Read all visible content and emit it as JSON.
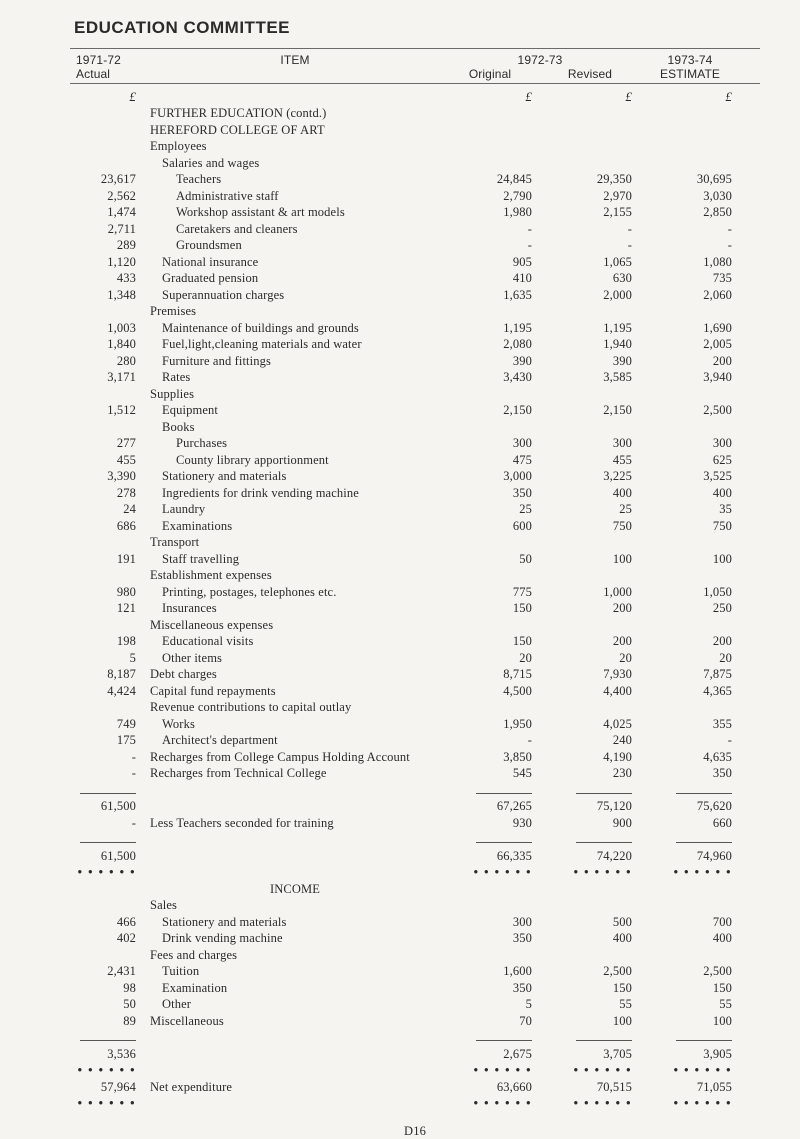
{
  "title": "EDUCATION COMMITTEE",
  "page_num": "D16",
  "header": {
    "col1_a": "1971-72",
    "col1_b": "Actual",
    "item": "ITEM",
    "col_7273": "1972-73",
    "original": "Original",
    "revised": "Revised",
    "col_7374": "1973-74",
    "estimate": "ESTIMATE"
  },
  "pound": "£",
  "sections": {
    "further": "FURTHER EDUCATION (contd.)",
    "hereford": "HEREFORD COLLEGE OF ART",
    "employees": "Employees",
    "salaries": "Salaries and wages",
    "premises": "Premises",
    "supplies": "Supplies",
    "books": "Books",
    "transport": "Transport",
    "estab": "Establishment expenses",
    "misc": "Miscellaneous expenses",
    "revenue": "Revenue contributions to capital outlay",
    "income": "INCOME",
    "sales": "Sales",
    "fees": "Fees and charges"
  },
  "rows": {
    "teachers": {
      "a": "23,617",
      "l": "Teachers",
      "o": "24,845",
      "r": "29,350",
      "e": "30,695"
    },
    "admin": {
      "a": "2,562",
      "l": "Administrative staff",
      "o": "2,790",
      "r": "2,970",
      "e": "3,030"
    },
    "workshop": {
      "a": "1,474",
      "l": "Workshop assistant & art models",
      "o": "1,980",
      "r": "2,155",
      "e": "2,850"
    },
    "caretakers": {
      "a": "2,711",
      "l": "Caretakers and cleaners",
      "o": "-",
      "r": "-",
      "e": "-"
    },
    "groundsmen": {
      "a": "289",
      "l": "Groundsmen",
      "o": "-",
      "r": "-",
      "e": "-"
    },
    "natins": {
      "a": "1,120",
      "l": "National insurance",
      "o": "905",
      "r": "1,065",
      "e": "1,080"
    },
    "gradpen": {
      "a": "433",
      "l": "Graduated pension",
      "o": "410",
      "r": "630",
      "e": "735"
    },
    "superann": {
      "a": "1,348",
      "l": "Superannuation charges",
      "o": "1,635",
      "r": "2,000",
      "e": "2,060"
    },
    "maint": {
      "a": "1,003",
      "l": "Maintenance of buildings and grounds",
      "o": "1,195",
      "r": "1,195",
      "e": "1,690"
    },
    "fuel": {
      "a": "1,840",
      "l": "Fuel,light,cleaning materials and water",
      "o": "2,080",
      "r": "1,940",
      "e": "2,005"
    },
    "furniture": {
      "a": "280",
      "l": "Furniture and fittings",
      "o": "390",
      "r": "390",
      "e": "200"
    },
    "rates": {
      "a": "3,171",
      "l": "Rates",
      "o": "3,430",
      "r": "3,585",
      "e": "3,940"
    },
    "equipment": {
      "a": "1,512",
      "l": "Equipment",
      "o": "2,150",
      "r": "2,150",
      "e": "2,500"
    },
    "purchases": {
      "a": "277",
      "l": "Purchases",
      "o": "300",
      "r": "300",
      "e": "300"
    },
    "county": {
      "a": "455",
      "l": "County library apportionment",
      "o": "475",
      "r": "455",
      "e": "625"
    },
    "stationery": {
      "a": "3,390",
      "l": "Stationery and materials",
      "o": "3,000",
      "r": "3,225",
      "e": "3,525"
    },
    "ingredients": {
      "a": "278",
      "l": "Ingredients for drink vending machine",
      "o": "350",
      "r": "400",
      "e": "400"
    },
    "laundry": {
      "a": "24",
      "l": "Laundry",
      "o": "25",
      "r": "25",
      "e": "35"
    },
    "exams": {
      "a": "686",
      "l": "Examinations",
      "o": "600",
      "r": "750",
      "e": "750"
    },
    "staff": {
      "a": "191",
      "l": "Staff travelling",
      "o": "50",
      "r": "100",
      "e": "100"
    },
    "printing": {
      "a": "980",
      "l": "Printing, postages, telephones etc.",
      "o": "775",
      "r": "1,000",
      "e": "1,050"
    },
    "insurances": {
      "a": "121",
      "l": "Insurances",
      "o": "150",
      "r": "200",
      "e": "250"
    },
    "eduvisits": {
      "a": "198",
      "l": "Educational visits",
      "o": "150",
      "r": "200",
      "e": "200"
    },
    "otheritems": {
      "a": "5",
      "l": "Other items",
      "o": "20",
      "r": "20",
      "e": "20"
    },
    "debt": {
      "a": "8,187",
      "l": "Debt charges",
      "o": "8,715",
      "r": "7,930",
      "e": "7,875"
    },
    "capital": {
      "a": "4,424",
      "l": "Capital fund repayments",
      "o": "4,500",
      "r": "4,400",
      "e": "4,365"
    },
    "works": {
      "a": "749",
      "l": "Works",
      "o": "1,950",
      "r": "4,025",
      "e": "355"
    },
    "architect": {
      "a": "175",
      "l": "Architect's department",
      "o": "-",
      "r": "240",
      "e": "-"
    },
    "recharge1": {
      "a": "-",
      "l": "Recharges from College Campus Holding Account",
      "o": "3,850",
      "r": "4,190",
      "e": "4,635"
    },
    "recharge2": {
      "a": "-",
      "l": "Recharges from Technical College",
      "o": "545",
      "r": "230",
      "e": "350"
    },
    "subtotal1": {
      "a": "61,500",
      "o": "67,265",
      "r": "75,120",
      "e": "75,620"
    },
    "lessteach": {
      "a": "-",
      "l": "Less Teachers seconded for training",
      "o": "930",
      "r": "900",
      "e": "660"
    },
    "subtotal2": {
      "a": "61,500",
      "o": "66,335",
      "r": "74,220",
      "e": "74,960"
    },
    "stationery2": {
      "a": "466",
      "l": "Stationery and materials",
      "o": "300",
      "r": "500",
      "e": "700"
    },
    "drink": {
      "a": "402",
      "l": "Drink vending machine",
      "o": "350",
      "r": "400",
      "e": "400"
    },
    "tuition": {
      "a": "2,431",
      "l": "Tuition",
      "o": "1,600",
      "r": "2,500",
      "e": "2,500"
    },
    "examination": {
      "a": "98",
      "l": "Examination",
      "o": "350",
      "r": "150",
      "e": "150"
    },
    "other": {
      "a": "50",
      "l": "Other",
      "o": "5",
      "r": "55",
      "e": "55"
    },
    "misc2": {
      "a": "89",
      "l": "Miscellaneous",
      "o": "70",
      "r": "100",
      "e": "100"
    },
    "subtotal3": {
      "a": "3,536",
      "o": "2,675",
      "r": "3,705",
      "e": "3,905"
    },
    "netexp": {
      "a": "57,964",
      "l": "Net expenditure",
      "o": "63,660",
      "r": "70,515",
      "e": "71,055"
    }
  },
  "dots": "• • • • • •"
}
